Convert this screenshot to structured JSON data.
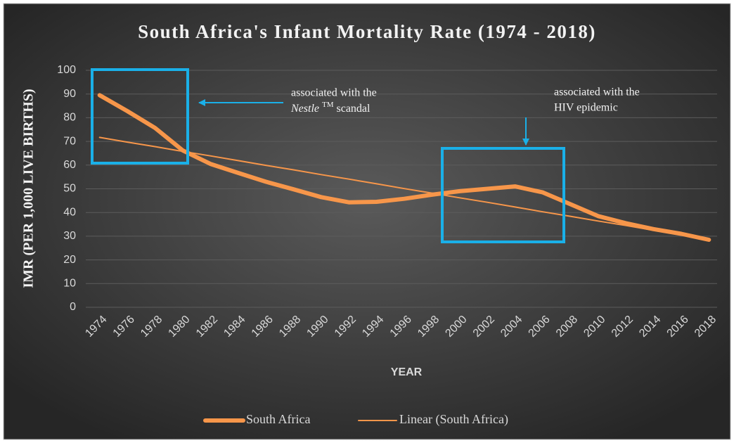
{
  "chart_data": {
    "type": "line",
    "title": "South Africa's Infant Mortality Rate (1974 - 2018)",
    "x_label": "YEAR",
    "y_label": "IMR (PER 1,000 LIVE BIRTHS)",
    "categories": [
      "1974",
      "1976",
      "1978",
      "1980",
      "1982",
      "1984",
      "1986",
      "1988",
      "1990",
      "1992",
      "1994",
      "1996",
      "1998",
      "2000",
      "2002",
      "2004",
      "2006",
      "2008",
      "2010",
      "2012",
      "2014",
      "2016",
      "2018"
    ],
    "series": [
      {
        "name": "South Africa",
        "color": "#f7964a",
        "values": [
          89.5,
          82.8,
          75.7,
          66.2,
          60.5,
          56.7,
          53,
          49.8,
          46.5,
          44.3,
          44.5,
          45.8,
          47.5,
          49,
          50,
          51,
          48.5,
          43.5,
          38.5,
          35.5,
          33,
          31,
          28.5
        ]
      },
      {
        "name": "Linear (South Africa)",
        "color": "#f7964a",
        "values": [
          71.7,
          69.7,
          67.8,
          65.8,
          63.9,
          61.9,
          59.9,
          58,
          56,
          54.1,
          52.1,
          50.1,
          48.2,
          46.2,
          44.3,
          42.3,
          40.3,
          38.4,
          36.4,
          34.5,
          32.5,
          30.5,
          28.6
        ]
      }
    ],
    "ylim": [
      0,
      100
    ],
    "yticks": [
      0,
      10,
      20,
      30,
      40,
      50,
      60,
      70,
      80,
      90,
      100
    ],
    "grid": true,
    "legend": "bottom",
    "annotations": [
      {
        "line1": "associated with the",
        "italic": "Nestle",
        "superscript": "TM",
        "rest": "scandal"
      },
      {
        "line1": "associated with the",
        "line2": "HIV epidemic"
      }
    ]
  }
}
